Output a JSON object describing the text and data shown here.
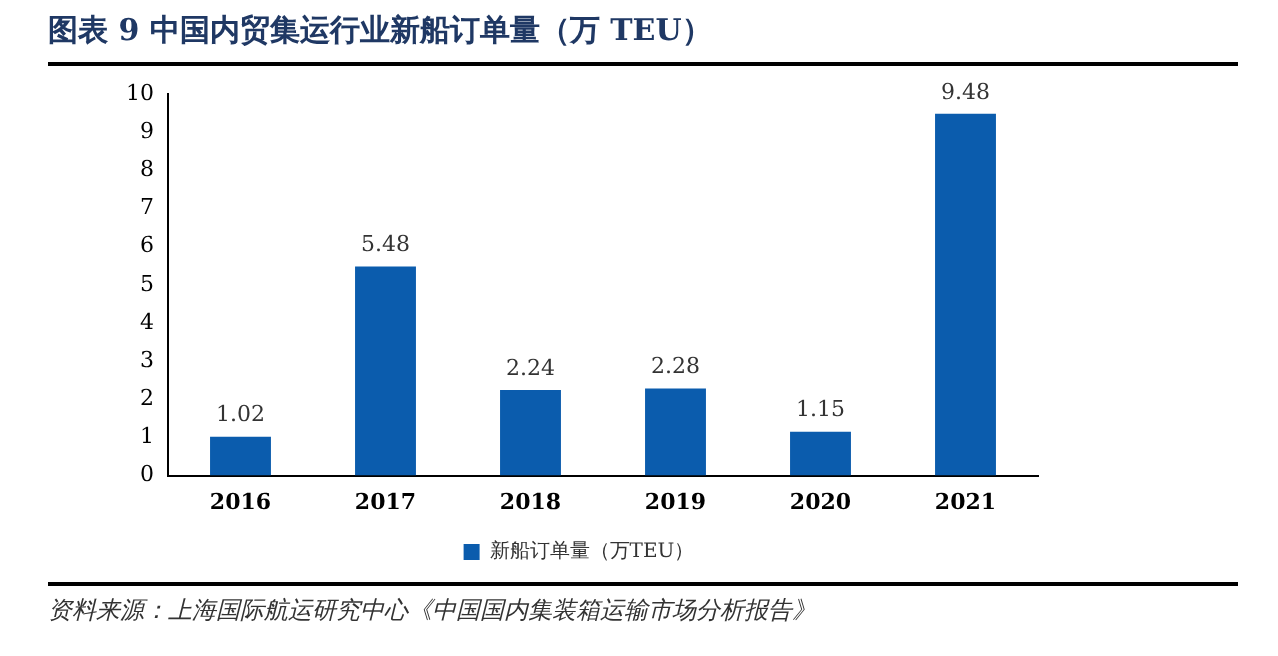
{
  "chart_data": {
    "type": "bar",
    "title": "图表 9  中国内贸集运行业新船订单量（万 TEU）",
    "categories": [
      "2016",
      "2017",
      "2018",
      "2019",
      "2020",
      "2021"
    ],
    "series": [
      {
        "name": "新船订单量（万TEU）",
        "color": "#0b5cad",
        "values": [
          1.02,
          5.48,
          2.24,
          2.28,
          1.15,
          9.48
        ]
      }
    ],
    "ylim": [
      0,
      10
    ],
    "yticks": [
      0,
      1,
      2,
      3,
      4,
      5,
      6,
      7,
      8,
      9,
      10
    ],
    "grid": false,
    "legend": "bottom",
    "data_labels": true,
    "annotations": [
      "资料来源：上海国际航运研究中心《中国国内集装箱运输市场分析报告》"
    ]
  }
}
